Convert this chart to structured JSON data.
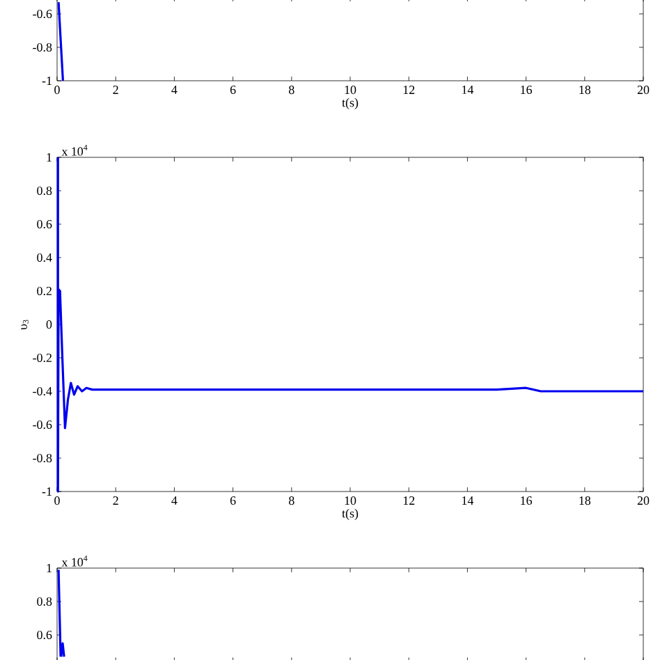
{
  "chart_data": [
    {
      "type": "line",
      "xlabel": "t(s)",
      "x": [
        0.05,
        0.2
      ],
      "series": [
        {
          "color": "#0000ee",
          "values": [
            -0.53,
            -1
          ]
        }
      ],
      "xlim": [
        0,
        20
      ],
      "ylim": [
        -1,
        -0.5
      ],
      "xticks": [
        0,
        2,
        4,
        6,
        8,
        10,
        12,
        14,
        16,
        18,
        20
      ],
      "yticks": [
        -1,
        -0.8,
        -0.6
      ]
    },
    {
      "type": "line",
      "xlabel": "t(s)",
      "ylabel": "υ$_{3}$",
      "annotations": [
        "x 10$^{4}$"
      ],
      "x": [
        0.03,
        0.03,
        0.05,
        0.1,
        0.18,
        0.27,
        0.37,
        0.47,
        0.58,
        0.7,
        0.85,
        1.0,
        1.2,
        15,
        16,
        16.5,
        17,
        20
      ],
      "series": [
        {
          "color": "#0000ee",
          "values": [
            1,
            -1,
            0.21,
            0.2,
            -0.2,
            -0.62,
            -0.45,
            -0.35,
            -0.42,
            -0.37,
            -0.4,
            -0.38,
            -0.39,
            -0.39,
            -0.38,
            -0.4,
            -0.4,
            -0.4
          ]
        }
      ],
      "xlim": [
        0,
        20
      ],
      "ylim": [
        -1,
        1
      ],
      "xticks": [
        0,
        2,
        4,
        6,
        8,
        10,
        12,
        14,
        16,
        18,
        20
      ],
      "yticks": [
        -1,
        -0.8,
        -0.6,
        -0.4,
        -0.2,
        0,
        0.2,
        0.4,
        0.6,
        0.8,
        1
      ]
    },
    {
      "type": "line",
      "annotations": [
        "x 10$^{4}$"
      ],
      "tick_labels": "y",
      "x": [
        0.05,
        0.12,
        null,
        0.14,
        0.19,
        0.24
      ],
      "series": [
        {
          "color": "#0000ee",
          "values": [
            0.99,
            0.47,
            null,
            0.47,
            0.55,
            0.47
          ]
        }
      ],
      "xlim": [
        0,
        20
      ],
      "ylim": [
        0.44,
        1
      ],
      "xticks": [
        0,
        2,
        4,
        6,
        8,
        10,
        12,
        14,
        16,
        18,
        20
      ],
      "yticks": [
        0.6,
        0.8,
        1
      ]
    }
  ]
}
